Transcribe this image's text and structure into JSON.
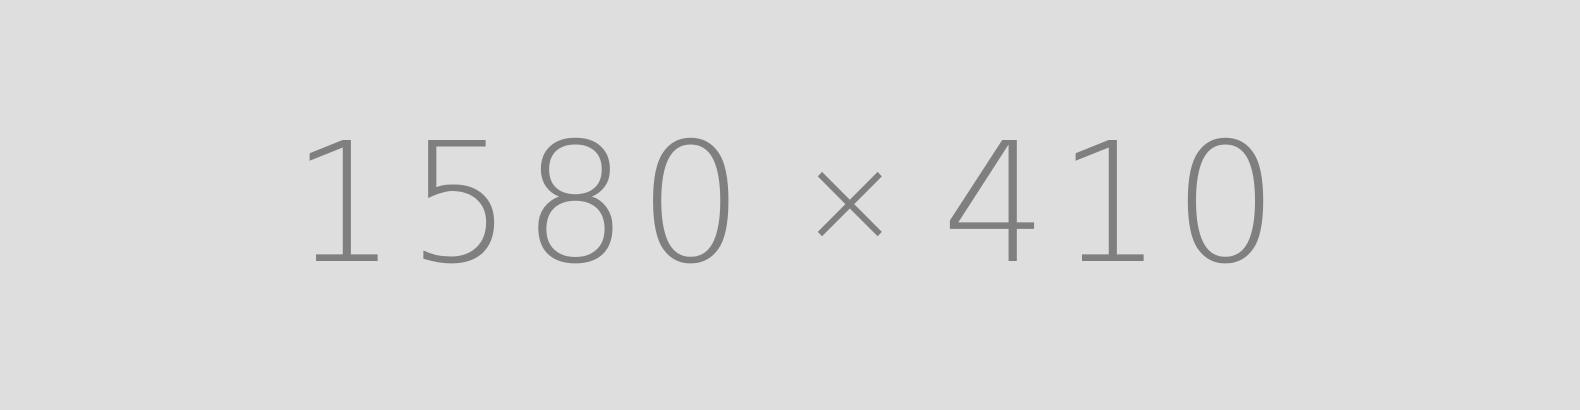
{
  "placeholder": {
    "width_text": "1580",
    "separator": "×",
    "height_text": "410",
    "background_color": "#dedede",
    "text_color": "#7f7f7f"
  }
}
